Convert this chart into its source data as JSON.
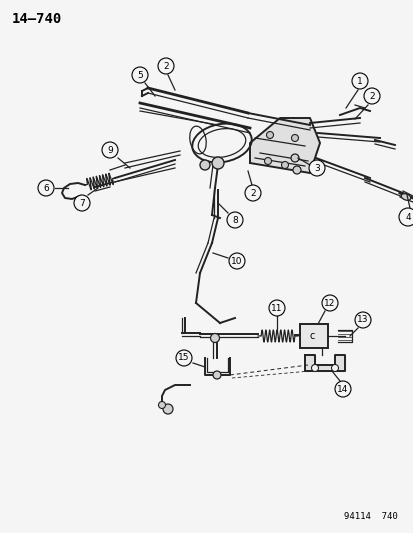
{
  "page_label": "14–740",
  "figure_code": "94114  740",
  "bg_color": "#f5f5f5",
  "line_color": "#222222",
  "figsize": [
    4.14,
    5.33
  ],
  "dpi": 100
}
